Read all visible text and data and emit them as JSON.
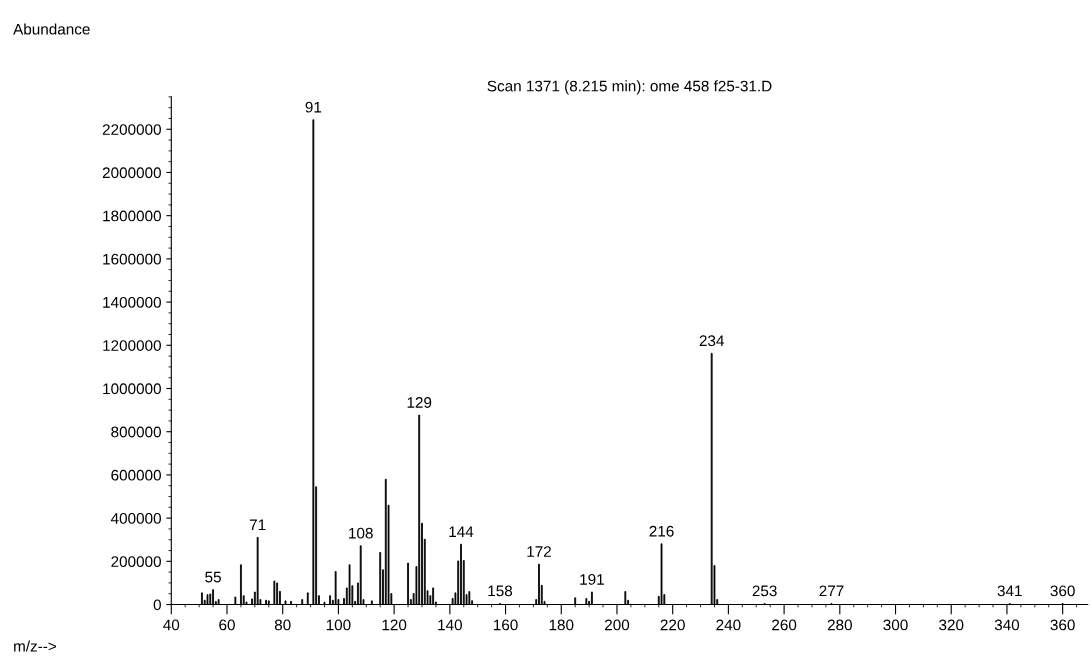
{
  "chart_data": {
    "type": "bar",
    "title": "Scan 1371 (8.215 min): ome 458 f25-31.D",
    "xlabel": "m/z-->",
    "ylabel": "Abundance",
    "x": [
      51,
      52,
      53,
      54,
      55,
      56,
      57,
      63,
      65,
      66,
      67,
      69,
      70,
      71,
      72,
      74,
      75,
      77,
      78,
      79,
      81,
      83,
      87,
      89,
      91,
      92,
      93,
      95,
      97,
      98,
      99,
      100,
      102,
      103,
      104,
      105,
      106,
      107,
      108,
      109,
      112,
      115,
      116,
      117,
      118,
      119,
      125,
      126,
      127,
      128,
      129,
      130,
      131,
      132,
      133,
      134,
      135,
      141,
      142,
      143,
      144,
      145,
      146,
      147,
      148,
      158,
      171,
      172,
      173,
      174,
      185,
      189,
      190,
      191,
      203,
      204,
      215,
      216,
      217,
      234,
      235,
      236,
      253,
      277,
      341,
      360
    ],
    "values": [
      54000,
      20000,
      46000,
      49000,
      69000,
      14000,
      23000,
      35000,
      184000,
      41000,
      12000,
      26000,
      58000,
      311000,
      23000,
      20000,
      17000,
      109000,
      100000,
      61000,
      17000,
      15000,
      23000,
      54000,
      2244000,
      545000,
      41000,
      11000,
      41000,
      20000,
      153000,
      23000,
      28000,
      77000,
      184000,
      87000,
      15000,
      100000,
      272000,
      23000,
      17000,
      241000,
      161000,
      580000,
      460000,
      51000,
      192000,
      23000,
      51000,
      176000,
      877000,
      376000,
      302000,
      64000,
      41000,
      77000,
      12000,
      28000,
      54000,
      202000,
      279000,
      204000,
      46000,
      60000,
      18000,
      5000,
      23000,
      187000,
      89000,
      15000,
      31000,
      28000,
      15000,
      58000,
      60000,
      20000,
      38000,
      281000,
      46000,
      1163000,
      181000,
      23000,
      5000,
      5000,
      5000,
      5000
    ],
    "color": "#000000",
    "xlim": [
      40,
      369
    ],
    "ylim": [
      0,
      2350000
    ],
    "xticks": [
      40,
      60,
      80,
      100,
      120,
      140,
      160,
      180,
      200,
      220,
      240,
      260,
      280,
      300,
      320,
      340,
      360
    ],
    "yticks": [
      0,
      200000,
      400000,
      600000,
      800000,
      1000000,
      1200000,
      1400000,
      1600000,
      1800000,
      2000000,
      2200000
    ],
    "grid": false,
    "annotations": [
      {
        "text": "55",
        "x": 55,
        "y": 69000
      },
      {
        "text": "71",
        "x": 71,
        "y": 311000
      },
      {
        "text": "91",
        "x": 91,
        "y": 2244000
      },
      {
        "text": "108",
        "x": 108,
        "y": 272000
      },
      {
        "text": "129",
        "x": 129,
        "y": 877000
      },
      {
        "text": "144",
        "x": 144,
        "y": 279000
      },
      {
        "text": "158",
        "x": 158,
        "y": 5000
      },
      {
        "text": "172",
        "x": 172,
        "y": 187000
      },
      {
        "text": "191",
        "x": 191,
        "y": 58000
      },
      {
        "text": "216",
        "x": 216,
        "y": 281000
      },
      {
        "text": "234",
        "x": 234,
        "y": 1163000
      },
      {
        "text": "253",
        "x": 253,
        "y": 5000
      },
      {
        "text": "277",
        "x": 277,
        "y": 5000
      },
      {
        "text": "341",
        "x": 341,
        "y": 5000
      },
      {
        "text": "360",
        "x": 360,
        "y": 5000
      }
    ]
  }
}
